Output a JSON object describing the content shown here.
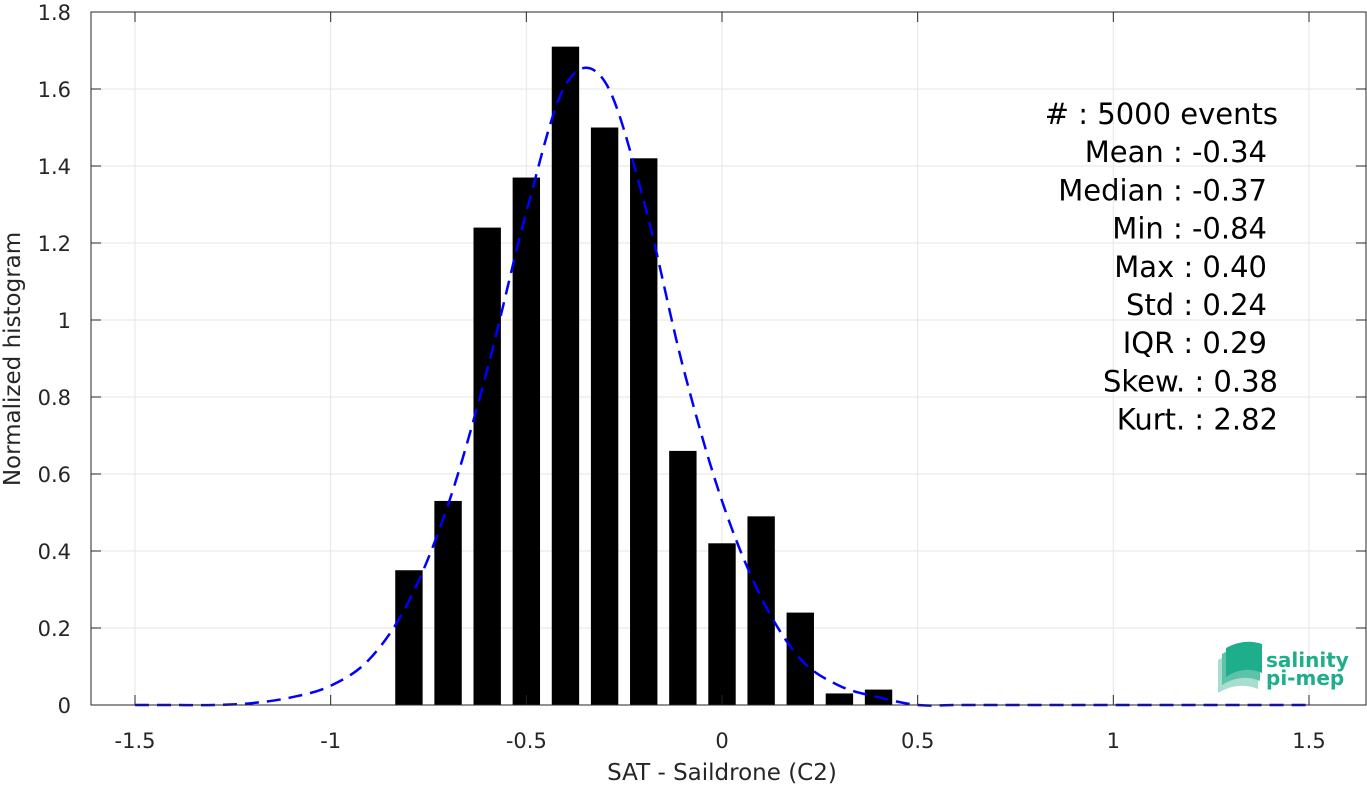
{
  "chart_data": {
    "type": "bar",
    "xlabel": "SAT - Saildrone (C2)",
    "ylabel": "Normalized histogram",
    "xlim": [
      -1.5,
      1.5
    ],
    "ylim": [
      0,
      1.8
    ],
    "xticks": [
      "-1.5",
      "-1",
      "-0.5",
      "0",
      "0.5",
      "1",
      "1.5"
    ],
    "xtick_values": [
      -1.5,
      -1,
      -0.5,
      0,
      0.5,
      1,
      1.5
    ],
    "yticks": [
      "0",
      "0.2",
      "0.4",
      "0.6",
      "0.8",
      "1",
      "1.2",
      "1.4",
      "1.6",
      "1.8"
    ],
    "ytick_values": [
      0,
      0.2,
      0.4,
      0.6,
      0.8,
      1.0,
      1.2,
      1.4,
      1.6,
      1.8
    ],
    "grid": true,
    "bin_width": 0.1,
    "bars": {
      "x": [
        -0.8,
        -0.7,
        -0.6,
        -0.5,
        -0.4,
        -0.3,
        -0.2,
        -0.1,
        0.0,
        0.1,
        0.2,
        0.3,
        0.4
      ],
      "values": [
        0.35,
        0.53,
        1.24,
        1.37,
        1.71,
        1.5,
        1.42,
        0.66,
        0.42,
        0.49,
        0.24,
        0.03,
        0.04
      ],
      "color": "#000000"
    },
    "fit_curve": {
      "style": "dashed",
      "color": "#0000ff",
      "x": [
        -1.5,
        -1.4,
        -1.3,
        -1.2,
        -1.1,
        -1.0,
        -0.9,
        -0.8,
        -0.7,
        -0.6,
        -0.5,
        -0.4,
        -0.3,
        -0.2,
        -0.1,
        0.0,
        0.1,
        0.2,
        0.3,
        0.4,
        0.5,
        0.6,
        0.7,
        0.8,
        0.9,
        1.0,
        1.1,
        1.2,
        1.3,
        1.4,
        1.5
      ],
      "values": [
        0,
        0,
        0,
        0.005,
        0.02,
        0.05,
        0.12,
        0.27,
        0.52,
        0.87,
        1.28,
        1.61,
        1.62,
        1.31,
        0.88,
        0.53,
        0.28,
        0.12,
        0.05,
        0.02,
        0,
        0,
        0,
        0,
        0,
        0,
        0,
        0,
        0,
        0,
        0
      ]
    },
    "stats": [
      "#  : 5000 events",
      "Mean : -0.34",
      "Median : -0.37",
      "Min : -0.84",
      "Max : 0.40",
      "Std : 0.24",
      "IQR : 0.29",
      "Skew. : 0.38",
      "Kurt. : 2.82"
    ]
  },
  "logo": {
    "line1": "salinity",
    "line2": "pi-mep",
    "color": "#1fae8c"
  }
}
